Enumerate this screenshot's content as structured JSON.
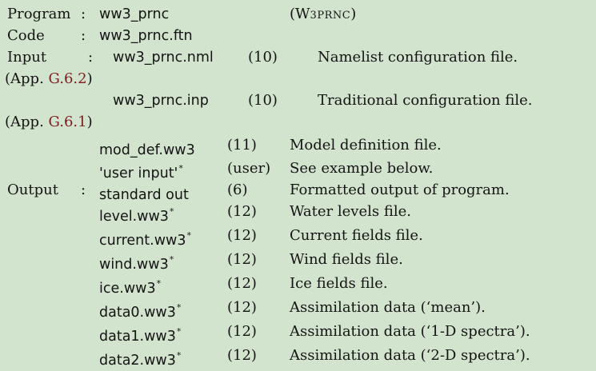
{
  "program": {
    "label": "Program",
    "colon": ":",
    "name": "ww3_prnc",
    "routine_open": "(",
    "routine_first": "W",
    "routine_rest": "3PRNC",
    "routine_close": ")"
  },
  "code": {
    "label": "Code",
    "colon": ":",
    "file": "ww3_prnc.ftn"
  },
  "input": {
    "label": "Input",
    "colon": ":",
    "appendix_prefix": "(App. ",
    "appendix_suffix": ")",
    "files": [
      {
        "name": "ww3_prnc.nml",
        "unit": "(10)",
        "desc": "Namelist configuration file.",
        "appendix_ref": "G.6.2"
      },
      {
        "name": "ww3_prnc.inp",
        "unit": "(10)",
        "desc": "Traditional configuration file.",
        "appendix_ref": "G.6.1"
      },
      {
        "name": "mod_def.ww3",
        "unit": "(11)",
        "desc": "Model definition file.",
        "star": ""
      },
      {
        "name": "'user input'",
        "unit": "(user)",
        "desc": "See example below.",
        "star": "*"
      }
    ]
  },
  "output": {
    "label": "Output",
    "colon": ":",
    "files": [
      {
        "name": "standard out",
        "unit": "(6)",
        "desc": "Formatted output of program.",
        "star": ""
      },
      {
        "name": "level.ww3",
        "unit": "(12)",
        "desc": "Water levels file.",
        "star": "*"
      },
      {
        "name": "current.ww3",
        "unit": "(12)",
        "desc": "Current fields file.",
        "star": "*"
      },
      {
        "name": "wind.ww3",
        "unit": "(12)",
        "desc": "Wind fields file.",
        "star": "*"
      },
      {
        "name": "ice.ww3",
        "unit": "(12)",
        "desc": "Ice fields file.",
        "star": "*"
      },
      {
        "name": "data0.ww3",
        "unit": "(12)",
        "desc": "Assimilation data (‘mean’).",
        "star": "*"
      },
      {
        "name": "data1.ww3",
        "unit": "(12)",
        "desc": "Assimilation data (‘1-D spectra’).",
        "star": "*"
      },
      {
        "name": "data2.ww3",
        "unit": "(12)",
        "desc": "Assimilation data (‘2-D spectra’).",
        "star": "*"
      }
    ]
  },
  "colors": {
    "background": "#d3e4ce",
    "text": "#141414",
    "link": "#7a1f1f"
  }
}
